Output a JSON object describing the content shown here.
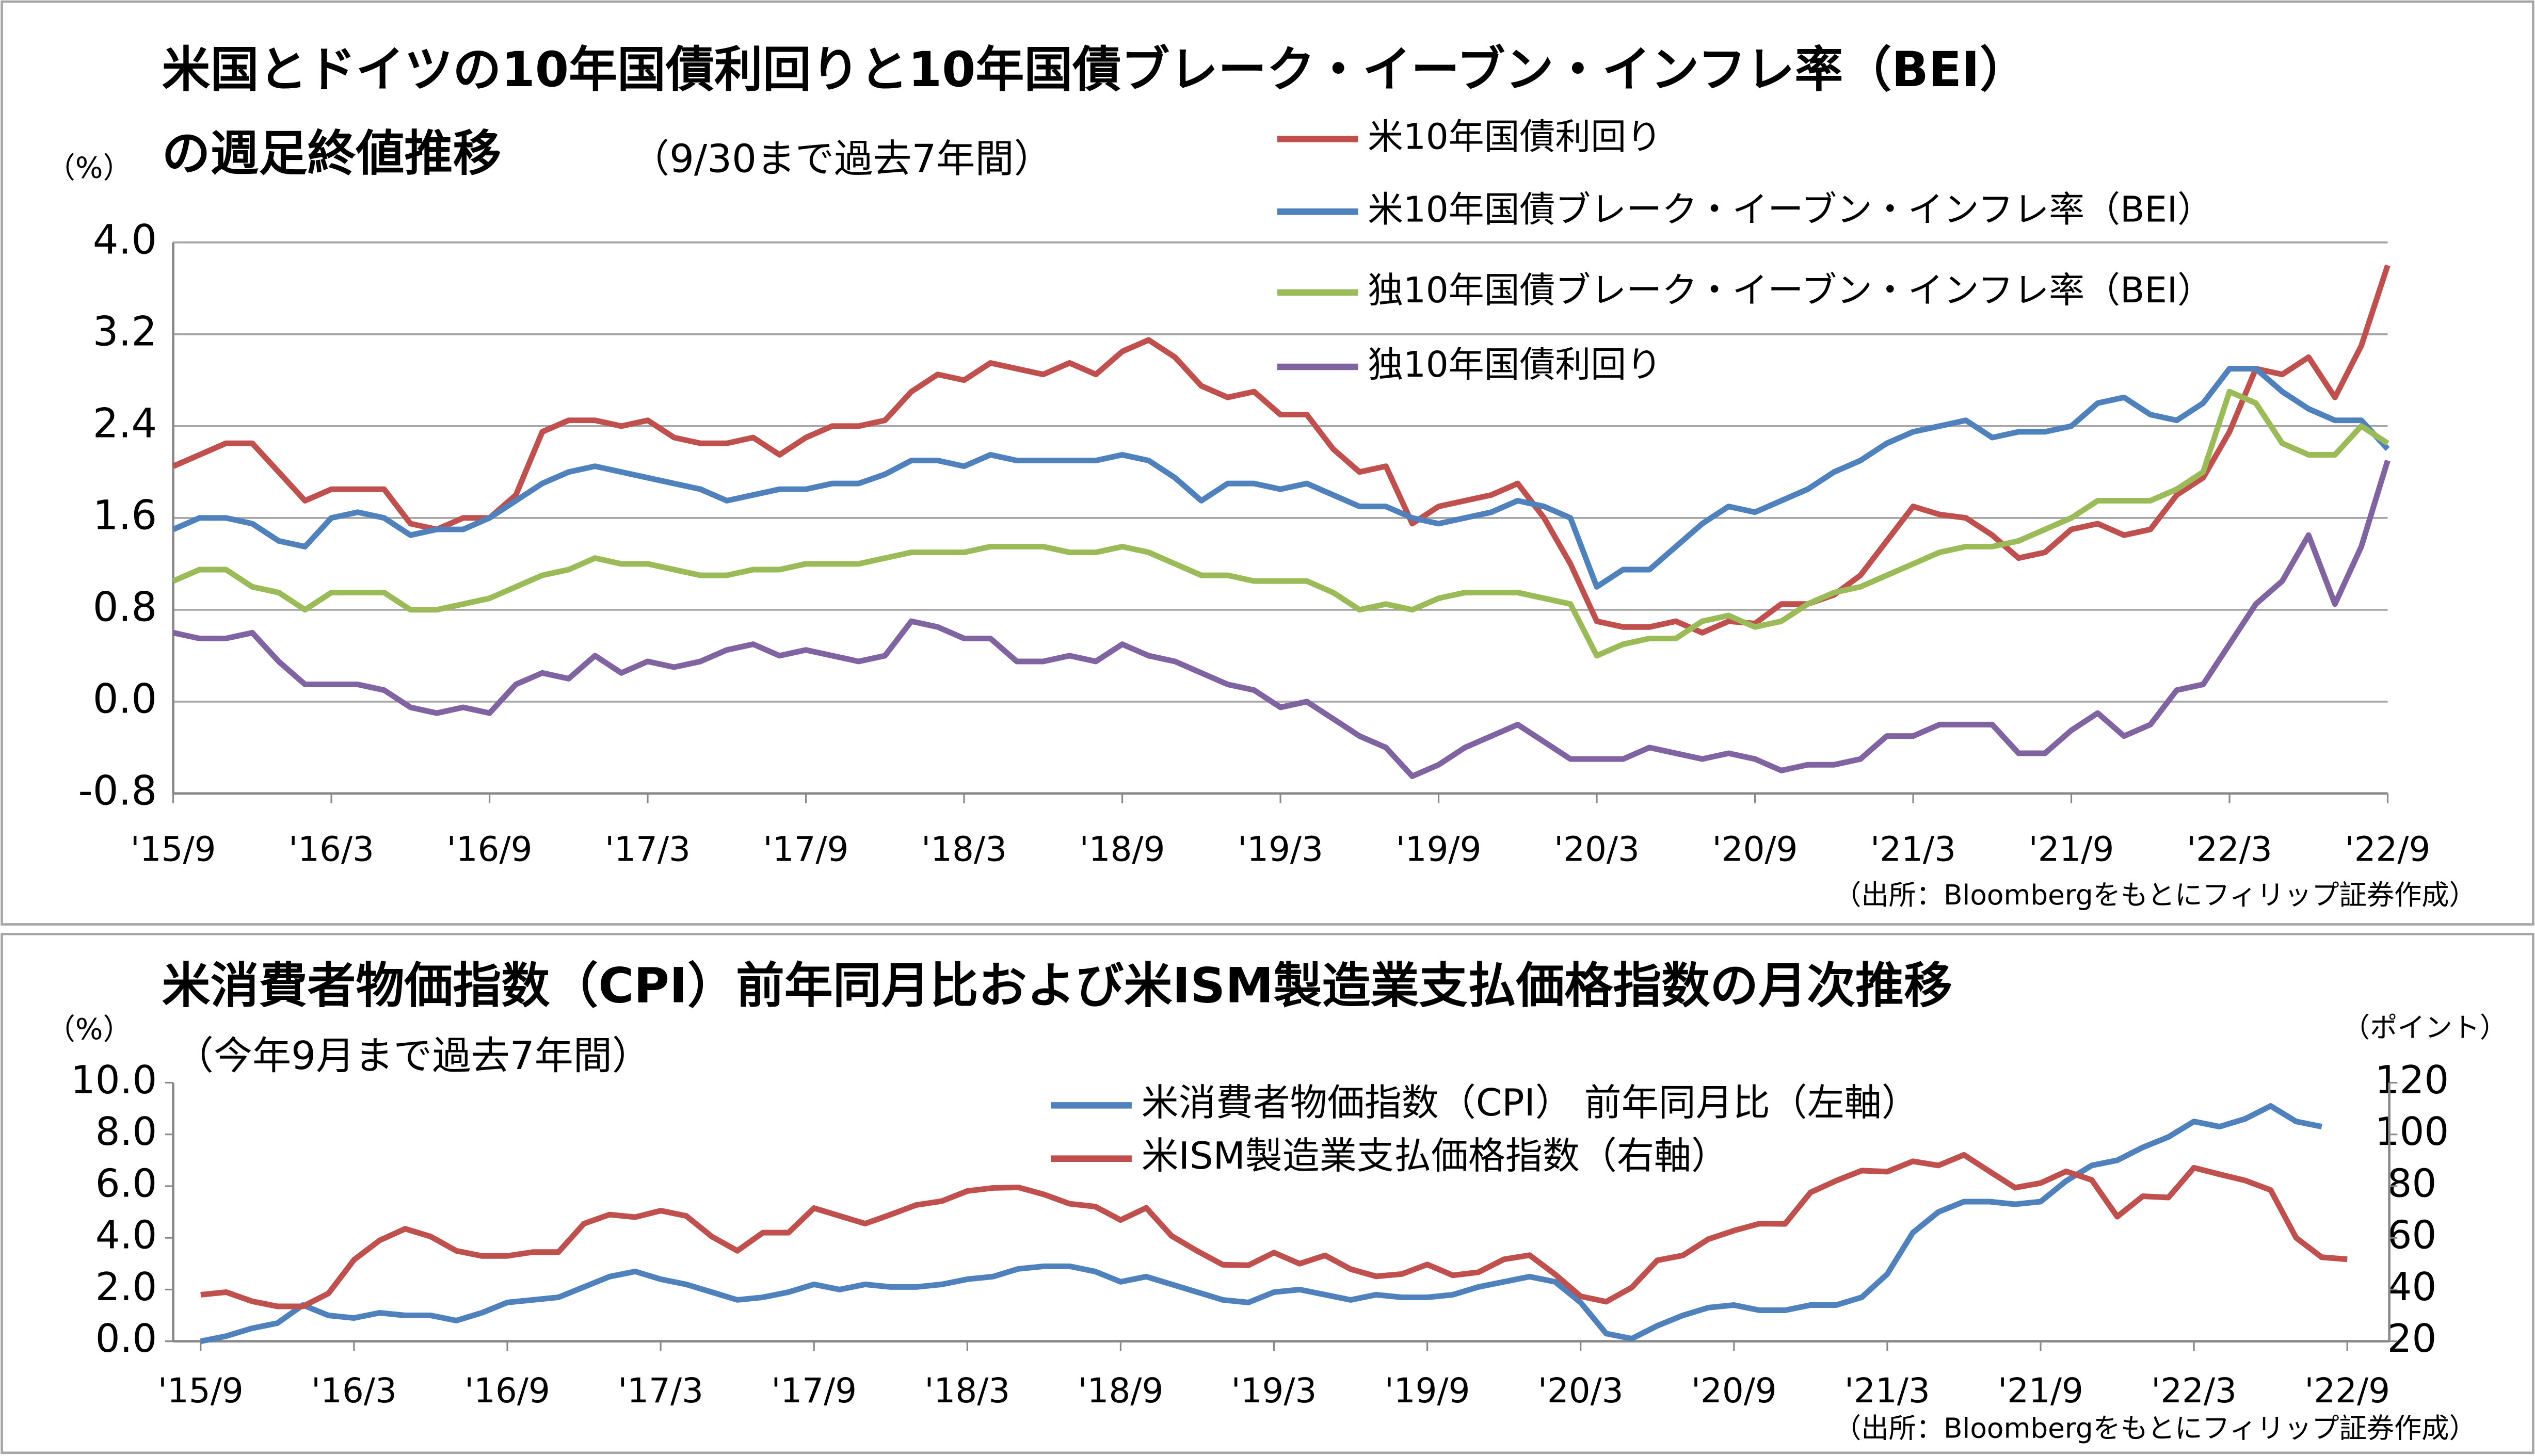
{
  "chart_data": [
    {
      "type": "line",
      "title": [
        "米国とドイツの10年国債利回りと10年国債ブレーク・イーブン・インフレ率（BEI）",
        "の週足終値推移"
      ],
      "subtitle": "（9/30まで過去7年間）",
      "y_unit": "（%）",
      "source": "（出所：Bloombergをもとにフィリップ証券作成）",
      "categories": [
        "'15/9",
        null,
        null,
        null,
        null,
        null,
        "'16/3",
        null,
        null,
        null,
        null,
        null,
        "'16/9",
        null,
        null,
        null,
        null,
        null,
        "'17/3",
        null,
        null,
        null,
        null,
        null,
        "'17/9",
        null,
        null,
        null,
        null,
        null,
        "'18/3",
        null,
        null,
        null,
        null,
        null,
        "'18/9",
        null,
        null,
        null,
        null,
        null,
        "'19/3",
        null,
        null,
        null,
        null,
        null,
        "'19/9",
        null,
        null,
        null,
        null,
        null,
        "'20/3",
        null,
        null,
        null,
        null,
        null,
        "'20/9",
        null,
        null,
        null,
        null,
        null,
        "'21/3",
        null,
        null,
        null,
        null,
        null,
        "'21/9",
        null,
        null,
        null,
        null,
        null,
        "'22/3",
        null,
        null,
        null,
        null,
        null,
        "'22/9"
      ],
      "series": [
        {
          "name": "米10年国債利回り",
          "color": "#c0504d",
          "values": [
            2.05,
            2.15,
            2.25,
            2.25,
            2.0,
            1.75,
            1.85,
            1.85,
            1.85,
            1.55,
            1.5,
            1.6,
            1.6,
            1.8,
            2.35,
            2.45,
            2.45,
            2.4,
            2.45,
            2.3,
            2.25,
            2.25,
            2.3,
            2.15,
            2.3,
            2.4,
            2.4,
            2.45,
            2.7,
            2.85,
            2.8,
            2.95,
            2.9,
            2.85,
            2.95,
            2.85,
            3.05,
            3.15,
            3.0,
            2.75,
            2.65,
            2.7,
            2.5,
            2.5,
            2.2,
            2.0,
            2.05,
            1.55,
            1.7,
            1.75,
            1.8,
            1.9,
            1.6,
            1.2,
            0.7,
            0.65,
            0.65,
            0.7,
            0.6,
            0.7,
            0.68,
            0.85,
            0.85,
            0.93,
            1.1,
            1.4,
            1.7,
            1.63,
            1.6,
            1.45,
            1.25,
            1.3,
            1.5,
            1.55,
            1.45,
            1.5,
            1.8,
            1.95,
            2.35,
            2.9,
            2.85,
            3.0,
            2.65,
            3.1,
            3.8
          ]
        },
        {
          "name": "米10年国債ブレーク・イーブン・インフレ率（BEI）",
          "color": "#4f81bd",
          "values": [
            1.5,
            1.6,
            1.6,
            1.55,
            1.4,
            1.35,
            1.6,
            1.65,
            1.6,
            1.45,
            1.5,
            1.5,
            1.6,
            1.75,
            1.9,
            2.0,
            2.05,
            2.0,
            1.95,
            1.9,
            1.85,
            1.75,
            1.8,
            1.85,
            1.85,
            1.9,
            1.9,
            1.98,
            2.1,
            2.1,
            2.05,
            2.15,
            2.1,
            2.1,
            2.1,
            2.1,
            2.15,
            2.1,
            1.95,
            1.75,
            1.9,
            1.9,
            1.85,
            1.9,
            1.8,
            1.7,
            1.7,
            1.6,
            1.55,
            1.6,
            1.65,
            1.75,
            1.7,
            1.6,
            1.0,
            1.15,
            1.15,
            1.35,
            1.55,
            1.7,
            1.65,
            1.75,
            1.85,
            2.0,
            2.1,
            2.25,
            2.35,
            2.4,
            2.45,
            2.3,
            2.35,
            2.35,
            2.4,
            2.6,
            2.65,
            2.5,
            2.45,
            2.6,
            2.9,
            2.9,
            2.7,
            2.55,
            2.45,
            2.45,
            2.2
          ]
        },
        {
          "name": "独10年国債ブレーク・イーブン・インフレ率（BEI）",
          "color": "#9bbb59",
          "values": [
            1.05,
            1.15,
            1.15,
            1.0,
            0.95,
            0.8,
            0.95,
            0.95,
            0.95,
            0.8,
            0.8,
            0.85,
            0.9,
            1.0,
            1.1,
            1.15,
            1.25,
            1.2,
            1.2,
            1.15,
            1.1,
            1.1,
            1.15,
            1.15,
            1.2,
            1.2,
            1.2,
            1.25,
            1.3,
            1.3,
            1.3,
            1.35,
            1.35,
            1.35,
            1.3,
            1.3,
            1.35,
            1.3,
            1.2,
            1.1,
            1.1,
            1.05,
            1.05,
            1.05,
            0.95,
            0.8,
            0.85,
            0.8,
            0.9,
            0.95,
            0.95,
            0.95,
            0.9,
            0.85,
            0.4,
            0.5,
            0.55,
            0.55,
            0.7,
            0.75,
            0.65,
            0.7,
            0.85,
            0.95,
            1.0,
            1.1,
            1.2,
            1.3,
            1.35,
            1.35,
            1.4,
            1.5,
            1.6,
            1.75,
            1.75,
            1.75,
            1.85,
            2.0,
            2.7,
            2.6,
            2.25,
            2.15,
            2.15,
            2.4,
            2.25
          ]
        },
        {
          "name": "独10年国債利回り",
          "color": "#8064a2",
          "values": [
            0.6,
            0.55,
            0.55,
            0.6,
            0.35,
            0.15,
            0.15,
            0.15,
            0.1,
            -0.05,
            -0.1,
            -0.05,
            -0.1,
            0.15,
            0.25,
            0.2,
            0.4,
            0.25,
            0.35,
            0.3,
            0.35,
            0.45,
            0.5,
            0.4,
            0.45,
            0.4,
            0.35,
            0.4,
            0.7,
            0.65,
            0.55,
            0.55,
            0.35,
            0.35,
            0.4,
            0.35,
            0.5,
            0.4,
            0.35,
            0.25,
            0.15,
            0.1,
            -0.05,
            0.0,
            -0.15,
            -0.3,
            -0.4,
            -0.65,
            -0.55,
            -0.4,
            -0.3,
            -0.2,
            -0.35,
            -0.5,
            -0.5,
            -0.5,
            -0.4,
            -0.45,
            -0.5,
            -0.45,
            -0.5,
            -0.6,
            -0.55,
            -0.55,
            -0.5,
            -0.3,
            -0.3,
            -0.2,
            -0.2,
            -0.2,
            -0.45,
            -0.45,
            -0.25,
            -0.1,
            -0.3,
            -0.2,
            0.1,
            0.15,
            0.5,
            0.85,
            1.05,
            1.45,
            0.85,
            1.35,
            2.1
          ]
        }
      ],
      "ylim": [
        -0.8,
        4.0
      ],
      "yticks": [
        {
          "value": -0.8,
          "label": "-0.8"
        },
        {
          "value": 0,
          "label": "0.0"
        },
        {
          "value": 0.8,
          "label": "0.8"
        },
        {
          "value": 1.6,
          "label": "1.6"
        },
        {
          "value": 2.4,
          "label": "2.4"
        },
        {
          "value": 3.2,
          "label": "3.2"
        },
        {
          "value": 4,
          "label": "4.0"
        }
      ],
      "negative_tick_color": "#ff0000",
      "grid": true
    },
    {
      "type": "line",
      "title": [
        "米消費者物価指数（CPI）前年同月比および米ISM製造業支払価格指数の月次推移"
      ],
      "subtitle": "（今年9月まで過去7年間）",
      "y_unit": "（%）",
      "y2_unit": "（ポイント）",
      "source": "（出所：Bloombergをもとにフィリップ証券作成）",
      "categories": [
        "'15/9",
        null,
        null,
        null,
        null,
        null,
        "'16/3",
        null,
        null,
        null,
        null,
        null,
        "'16/9",
        null,
        null,
        null,
        null,
        null,
        "'17/3",
        null,
        null,
        null,
        null,
        null,
        "'17/9",
        null,
        null,
        null,
        null,
        null,
        "'18/3",
        null,
        null,
        null,
        null,
        null,
        "'18/9",
        null,
        null,
        null,
        null,
        null,
        "'19/3",
        null,
        null,
        null,
        null,
        null,
        "'19/9",
        null,
        null,
        null,
        null,
        null,
        "'20/3",
        null,
        null,
        null,
        null,
        null,
        "'20/9",
        null,
        null,
        null,
        null,
        null,
        "'21/3",
        null,
        null,
        null,
        null,
        null,
        "'21/9",
        null,
        null,
        null,
        null,
        null,
        "'22/3",
        null,
        null,
        null,
        null,
        null,
        "'22/9"
      ],
      "series": [
        {
          "name": "米消費者物価指数（CPI） 前年同月比（左軸）",
          "color": "#4f81bd",
          "values": [
            0.0,
            0.2,
            0.5,
            0.7,
            1.4,
            1.0,
            0.9,
            1.1,
            1.0,
            1.0,
            0.8,
            1.1,
            1.5,
            1.6,
            1.7,
            2.1,
            2.5,
            2.7,
            2.4,
            2.2,
            1.9,
            1.6,
            1.7,
            1.9,
            2.2,
            2.0,
            2.2,
            2.1,
            2.1,
            2.2,
            2.4,
            2.5,
            2.8,
            2.9,
            2.9,
            2.7,
            2.3,
            2.5,
            2.2,
            1.9,
            1.6,
            1.5,
            1.9,
            2.0,
            1.8,
            1.6,
            1.8,
            1.7,
            1.7,
            1.8,
            2.1,
            2.3,
            2.5,
            2.3,
            1.5,
            0.3,
            0.1,
            0.6,
            1.0,
            1.3,
            1.4,
            1.2,
            1.2,
            1.4,
            1.4,
            1.7,
            2.6,
            4.2,
            5.0,
            5.4,
            5.4,
            5.3,
            5.4,
            6.2,
            6.8,
            7.0,
            7.5,
            7.9,
            8.5,
            8.3,
            8.6,
            9.1,
            8.5,
            8.3,
            null
          ]
        },
        {
          "name": "米ISM製造業支払価格指数（右軸）",
          "color": "#c0504d",
          "axis": "y2",
          "values": [
            38,
            39,
            35.5,
            33.5,
            33.5,
            38.5,
            51.5,
            59,
            63.5,
            60.5,
            55,
            53,
            53,
            54.5,
            54.5,
            65.5,
            69,
            68,
            70.5,
            68.5,
            60.5,
            55,
            62,
            62,
            71.5,
            68.5,
            65.5,
            69,
            72.7,
            74.2,
            78.1,
            79.3,
            79.5,
            76.8,
            73.2,
            72.1,
            66.9,
            71.6,
            60.7,
            54.9,
            49.6,
            49.4,
            54.3,
            50.0,
            53.2,
            47.9,
            45.1,
            46.0,
            49.7,
            45.5,
            46.7,
            51.7,
            53.3,
            45.9,
            37.4,
            35.3,
            40.8,
            51.3,
            53.2,
            59.5,
            62.8,
            65.5,
            65.4,
            77.6,
            82.1,
            86.0,
            85.6,
            89.6,
            88.0,
            92.1,
            85.7,
            79.4,
            81.2,
            85.7,
            82.4,
            68.2,
            76.1,
            75.6,
            87.1,
            84.6,
            82.2,
            78.5,
            60.0,
            52.5,
            51.7
          ]
        }
      ],
      "ylim": [
        0,
        10
      ],
      "yticks": [
        {
          "value": 0,
          "label": "0.0"
        },
        {
          "value": 2,
          "label": "2.0"
        },
        {
          "value": 4,
          "label": "4.0"
        },
        {
          "value": 6,
          "label": "6.0"
        },
        {
          "value": 8,
          "label": "8.0"
        },
        {
          "value": 10,
          "label": "10.0"
        }
      ],
      "y2lim": [
        20,
        120
      ],
      "y2ticks": [
        20,
        40,
        60,
        80,
        100,
        120
      ],
      "grid": false
    }
  ]
}
